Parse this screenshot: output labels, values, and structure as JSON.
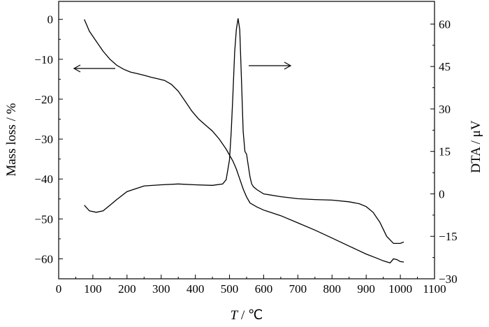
{
  "chart_data": {
    "type": "line",
    "xlabel_var": "T",
    "xlabel_unit": " / ℃",
    "ylabel_left": "Mass loss / %",
    "ylabel_right": "DTA / μV",
    "xlim": [
      0,
      1100
    ],
    "ylim_left": [
      -65,
      4.5
    ],
    "ylim_right": [
      -30,
      68
    ],
    "x_ticks": [
      0,
      100,
      200,
      300,
      400,
      500,
      600,
      700,
      800,
      900,
      1000,
      1100
    ],
    "y_left_ticks": [
      0,
      -10,
      -20,
      -30,
      -40,
      -50,
      -60
    ],
    "y_right_ticks": [
      60,
      45,
      30,
      15,
      0,
      -15,
      -30
    ],
    "y_left_tick_labels": [
      "0",
      "−10",
      "−20",
      "−30",
      "−40",
      "−50",
      "−60"
    ],
    "y_right_tick_labels": [
      "60",
      "45",
      "30",
      "15",
      "0",
      "−15",
      "−30"
    ],
    "grid": false,
    "series": [
      {
        "axis": "left",
        "x": [
          75,
          90,
          110,
          130,
          150,
          170,
          190,
          210,
          230,
          250,
          270,
          290,
          310,
          330,
          350,
          370,
          390,
          410,
          430,
          450,
          470,
          490,
          510,
          520,
          530,
          540,
          550,
          560,
          580,
          600,
          650,
          700,
          750,
          800,
          850,
          900,
          930,
          950,
          970,
          980,
          990,
          1000,
          1010
        ],
        "y": [
          0,
          -3,
          -5.5,
          -8,
          -10,
          -11.5,
          -12.5,
          -13.2,
          -13.6,
          -14,
          -14.5,
          -14.9,
          -15.3,
          -16.3,
          -18,
          -20.5,
          -23,
          -25,
          -26.5,
          -28,
          -30,
          -32.5,
          -35.5,
          -37.5,
          -40,
          -42.5,
          -44.5,
          -46,
          -47,
          -47.8,
          -49.2,
          -51,
          -52.8,
          -54.8,
          -56.8,
          -58.8,
          -59.8,
          -60.5,
          -61,
          -60,
          -60.2,
          -60.7,
          -60.8
        ]
      },
      {
        "axis": "right",
        "x": [
          75,
          90,
          110,
          130,
          150,
          170,
          200,
          250,
          300,
          350,
          400,
          450,
          480,
          490,
          500,
          505,
          510,
          515,
          520,
          525,
          530,
          535,
          540,
          545,
          550,
          555,
          560,
          565,
          570,
          580,
          600,
          650,
          700,
          750,
          800,
          850,
          880,
          900,
          920,
          940,
          960,
          980,
          1000,
          1010
        ],
        "y": [
          -4,
          -6,
          -6.5,
          -6,
          -4,
          -2,
          0.8,
          2.8,
          3.2,
          3.5,
          3.2,
          3,
          3.5,
          5,
          12,
          22,
          35,
          50,
          58,
          62,
          58,
          40,
          22,
          15,
          14,
          10,
          6,
          3.5,
          2.5,
          1.5,
          0,
          -1,
          -1.7,
          -2,
          -2.2,
          -2.8,
          -3.5,
          -4.5,
          -6.5,
          -10,
          -15,
          -17.5,
          -17.5,
          -17
        ]
      }
    ],
    "annotations": [
      {
        "type": "arrow",
        "direction": "left",
        "points_to_axis": "left"
      },
      {
        "type": "arrow",
        "direction": "right",
        "points_to_axis": "right"
      }
    ]
  }
}
